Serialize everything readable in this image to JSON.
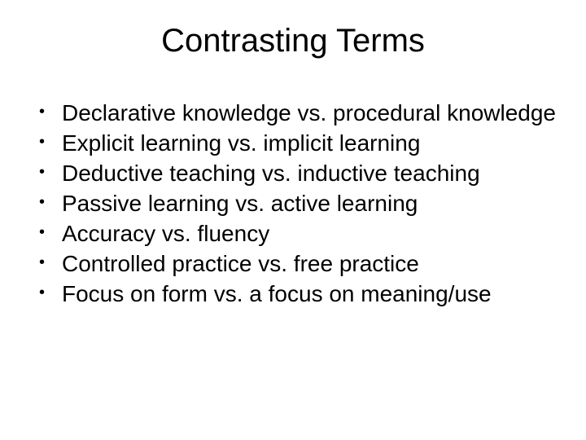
{
  "slide": {
    "title": "Contrasting Terms",
    "bullets": [
      "Declarative knowledge vs. procedural knowledge",
      "Explicit learning vs. implicit learning",
      "Deductive teaching vs. inductive teaching",
      "Passive learning vs. active learning",
      "Accuracy vs. fluency",
      "Controlled practice vs. free practice",
      "Focus on form vs. a focus on meaning/use"
    ],
    "title_fontsize": 40,
    "body_fontsize": 28,
    "background_color": "#ffffff",
    "text_color": "#000000",
    "bullet_marker": "•"
  }
}
